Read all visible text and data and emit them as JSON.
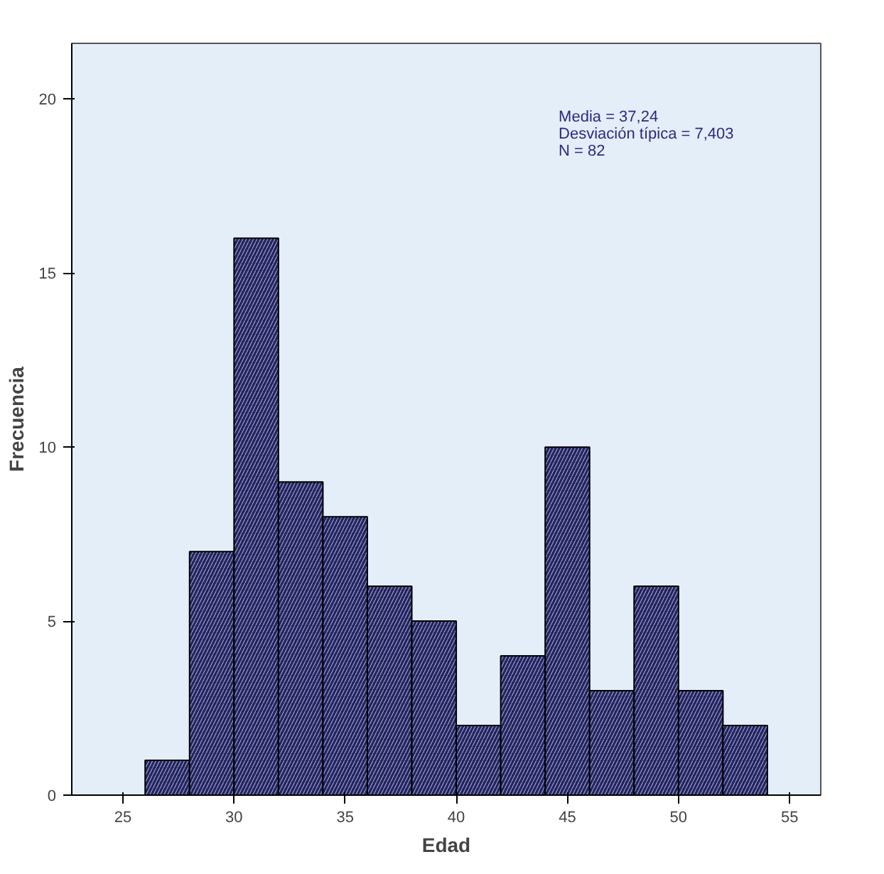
{
  "chart_data": {
    "type": "histogram",
    "xlabel": "Edad",
    "ylabel": "Frecuencia",
    "bins": [
      26,
      28,
      30,
      32,
      34,
      36,
      38,
      40,
      42,
      44,
      46,
      48,
      50,
      52,
      54
    ],
    "values": [
      1,
      7,
      16,
      9,
      8,
      6,
      5,
      2,
      4,
      10,
      3,
      6,
      3,
      2
    ],
    "color": "#23235e",
    "xlim": [
      22.7,
      56.4
    ],
    "ylim": [
      0,
      21.6
    ],
    "xticks": [
      25,
      30,
      35,
      40,
      45,
      50,
      55
    ],
    "yticks": [
      0,
      5,
      10,
      15,
      20
    ],
    "annotations": [
      "Media = 37,24",
      "Desviación típica = 7,403",
      "N = 82"
    ],
    "grid": false
  }
}
